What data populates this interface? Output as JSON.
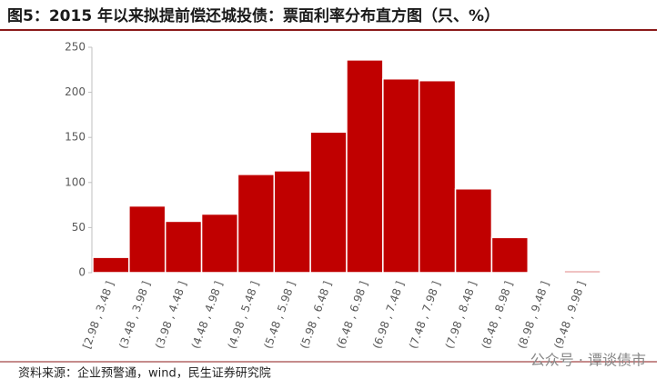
{
  "chart_data": {
    "type": "bar",
    "title": "图5：2015 年以来拟提前偿还城投债：票面利率分布直方图（只、%）",
    "source": "资料来源：企业预警通，wind，民生证券研究院",
    "watermark": "公众号 · 谭谈债市",
    "categories": [
      "[2.98 , 3.48 ]",
      "(3.48 , 3.98 ]",
      "(3.98 , 4.48 ]",
      "(4.48 , 4.98 ]",
      "(4.98 , 5.48 ]",
      "(5.48 , 5.98 ]",
      "(5.98 , 6.48 ]",
      "(6.48 , 6.98 ]",
      "(6.98 , 7.48 ]",
      "(7.48 , 7.98 ]",
      "(7.98 , 8.48 ]",
      "(8.48 , 8.98 ]",
      "(8.98 , 9.48 ]",
      "(9.48 , 9.98 ]"
    ],
    "values": [
      17,
      74,
      57,
      65,
      109,
      113,
      156,
      236,
      215,
      213,
      93,
      39,
      1,
      2
    ],
    "color": "#c00000",
    "ylim": [
      0,
      250
    ],
    "yticks": [
      0,
      50,
      100,
      150,
      200,
      250
    ],
    "grid": false
  }
}
